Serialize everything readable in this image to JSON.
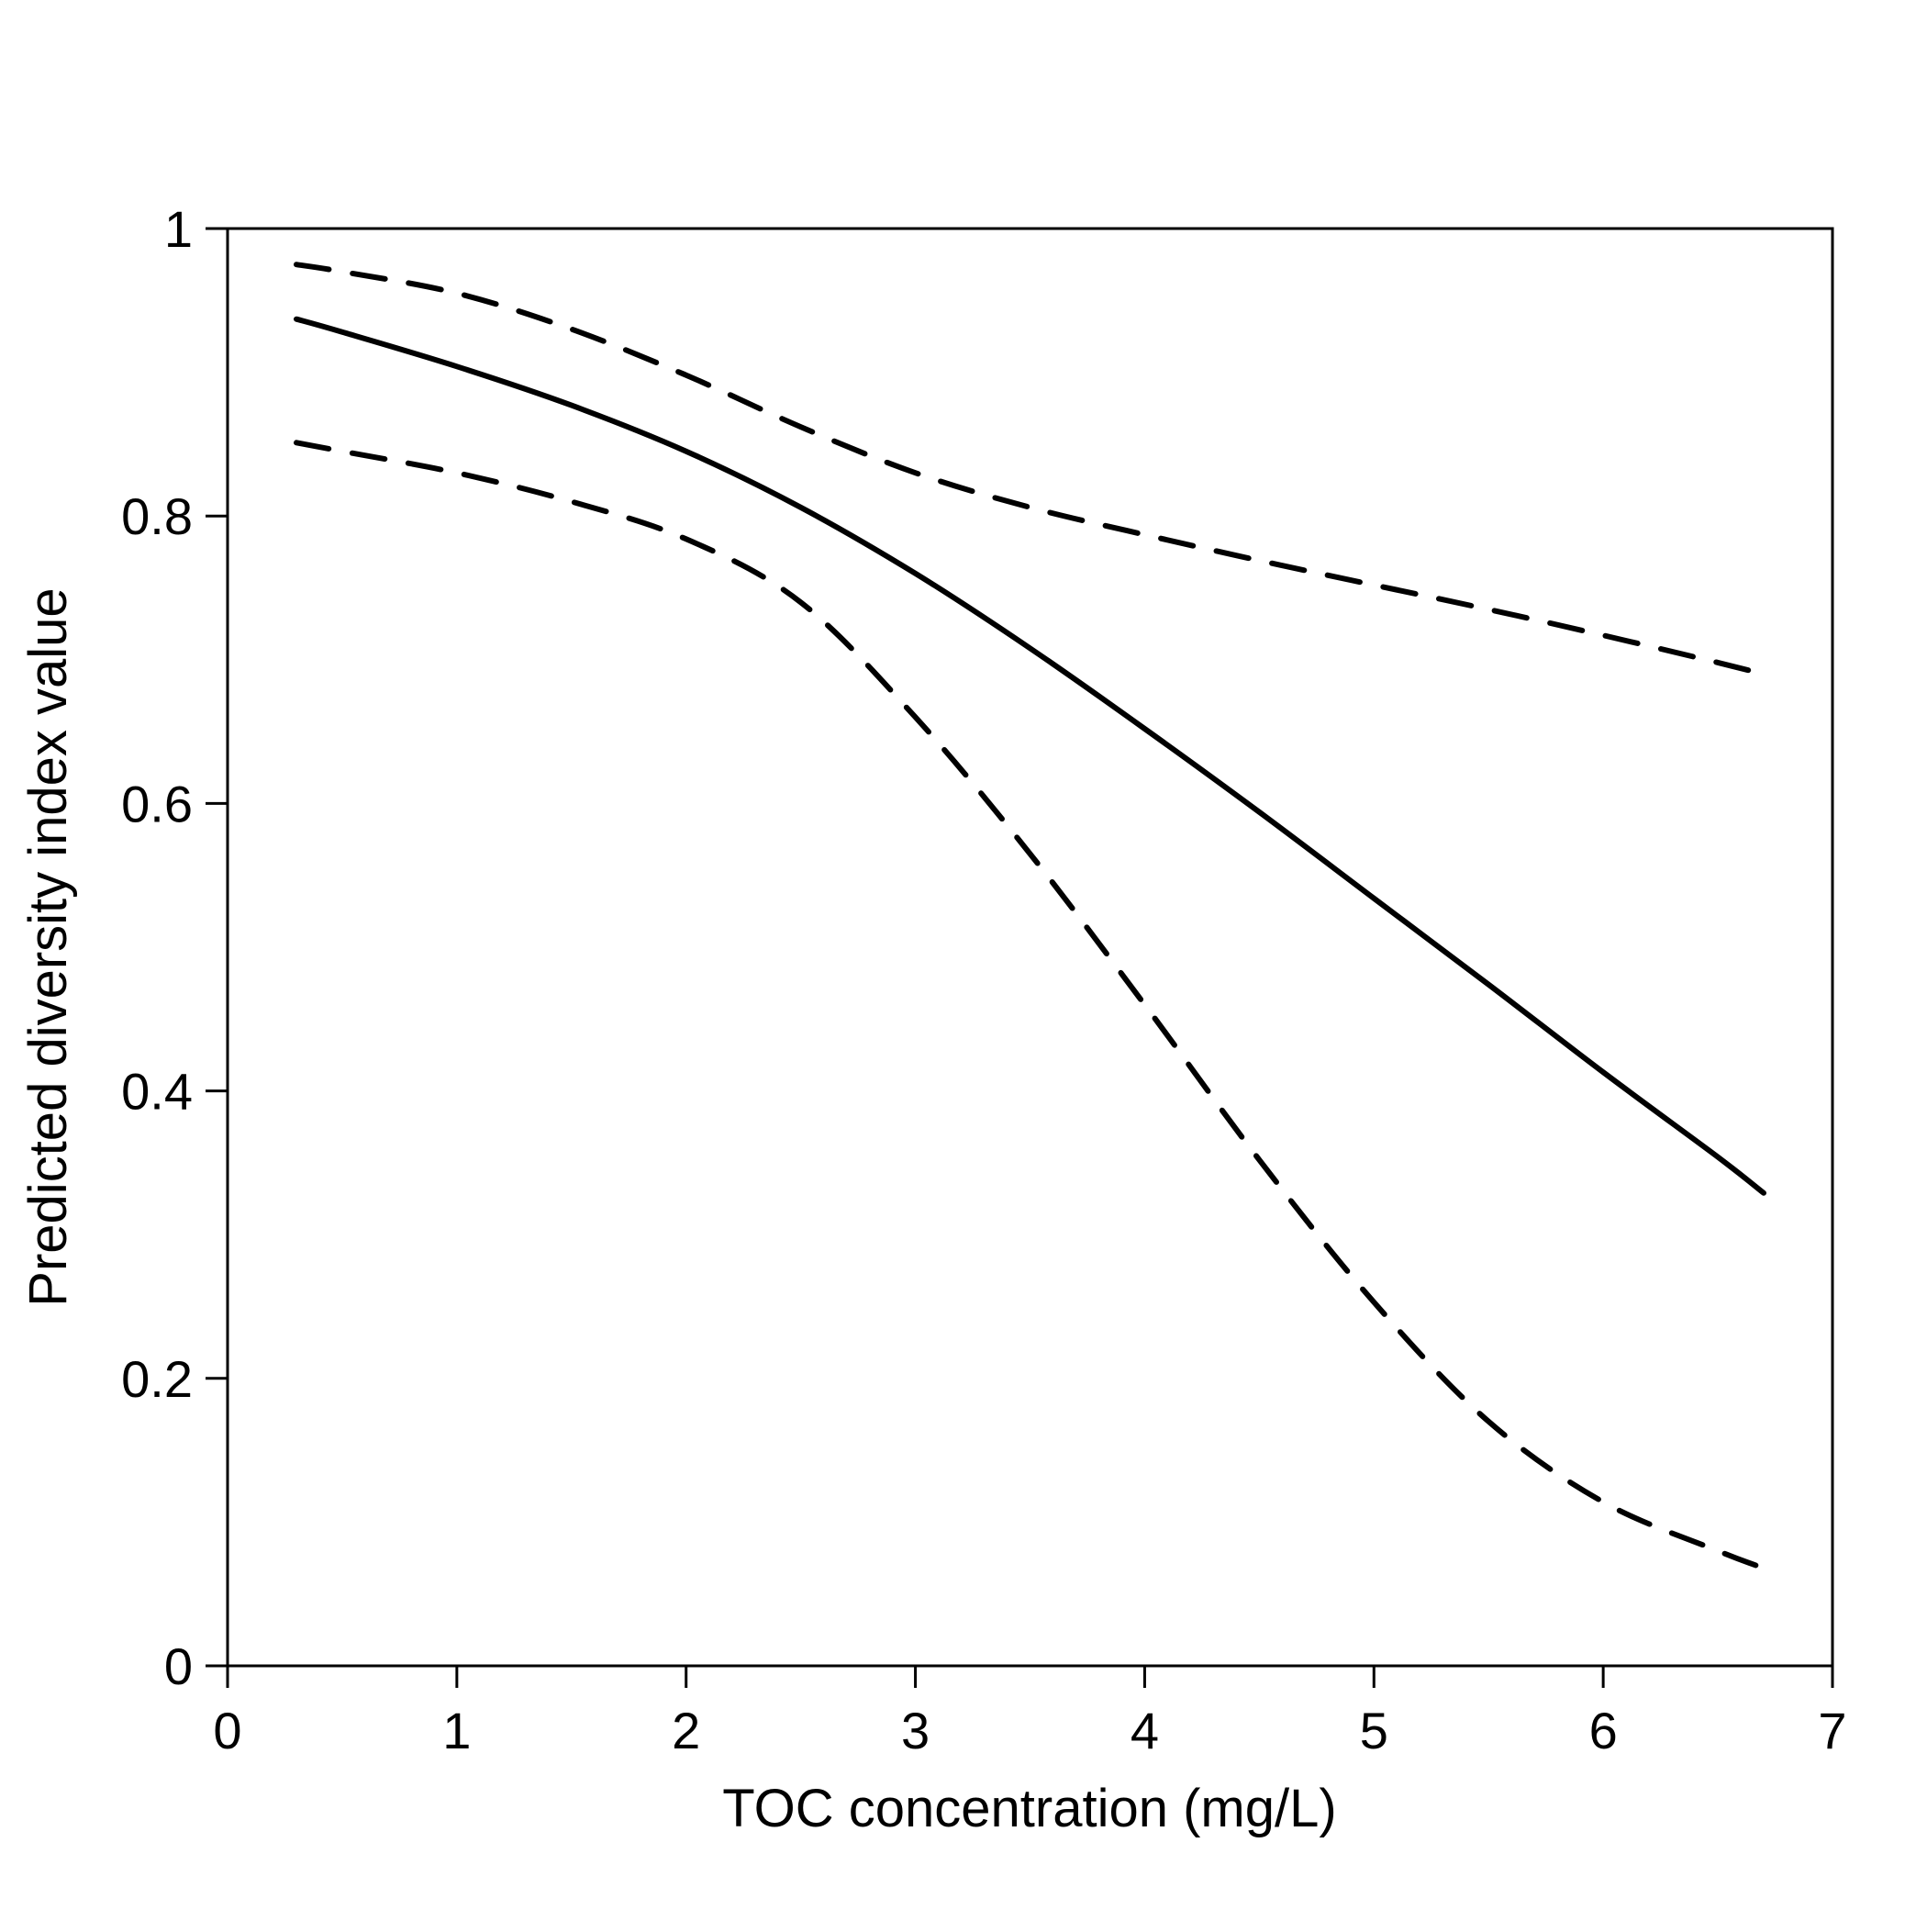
{
  "chart_data": {
    "type": "line",
    "title": "",
    "xlabel": "TOC concentration (mg/L)",
    "ylabel": "Predicted diversity index value",
    "xlim": [
      0,
      7
    ],
    "ylim": [
      0,
      1
    ],
    "x_ticks": [
      0,
      1,
      2,
      3,
      4,
      5,
      6,
      7
    ],
    "x_tick_labels": [
      "0",
      "1",
      "2",
      "3",
      "4",
      "5",
      "6",
      "7"
    ],
    "y_ticks": [
      0,
      0.2,
      0.4,
      0.6,
      0.8,
      1
    ],
    "y_tick_labels": [
      "0",
      "0.2",
      "0.4",
      "0.6",
      "0.8",
      "1"
    ],
    "grid": false,
    "legend": "none",
    "colors": {
      "line": "#000000",
      "axis": "#000000",
      "background": "#ffffff"
    },
    "series": [
      {
        "style": "solid",
        "x": [
          0.3,
          0.5,
          1.0,
          1.5,
          2.0,
          2.5,
          3.0,
          3.5,
          4.0,
          4.5,
          5.0,
          5.5,
          6.0,
          6.5,
          6.7
        ],
        "y": [
          0.937,
          0.928,
          0.904,
          0.877,
          0.845,
          0.806,
          0.76,
          0.708,
          0.652,
          0.594,
          0.534,
          0.474,
          0.413,
          0.354,
          0.329
        ]
      },
      {
        "style": "dashed",
        "x": [
          0.3,
          0.5,
          1.0,
          1.5,
          2.0,
          2.5,
          3.0,
          3.5,
          4.0,
          4.5,
          5.0,
          5.5,
          6.0,
          6.5,
          6.7
        ],
        "y": [
          0.975,
          0.97,
          0.955,
          0.93,
          0.898,
          0.862,
          0.83,
          0.806,
          0.787,
          0.769,
          0.752,
          0.735,
          0.717,
          0.698,
          0.69
        ]
      },
      {
        "style": "dashed",
        "x": [
          0.3,
          0.5,
          1.0,
          1.5,
          2.0,
          2.5,
          3.0,
          3.5,
          4.0,
          4.5,
          5.0,
          5.5,
          6.0,
          6.5,
          6.7
        ],
        "y": [
          0.851,
          0.845,
          0.83,
          0.81,
          0.784,
          0.74,
          0.66,
          0.565,
          0.46,
          0.352,
          0.253,
          0.17,
          0.114,
          0.08,
          0.068
        ]
      }
    ]
  }
}
